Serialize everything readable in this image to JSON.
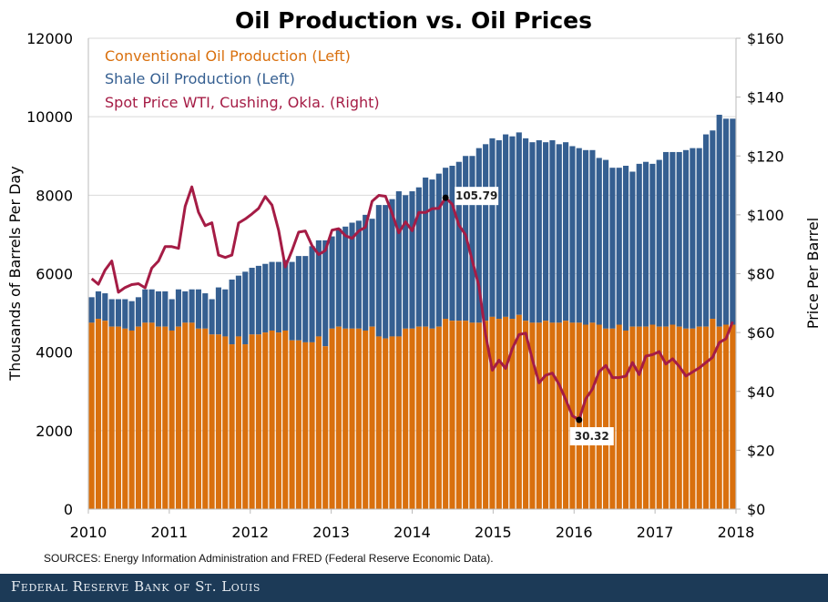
{
  "chart_data": {
    "type": "bar",
    "title": "Oil Production vs. Oil Prices",
    "ylabel": "Thousands of Barrels Per Day",
    "y2label": "Price Per Barrel",
    "ylim": [
      0,
      12000
    ],
    "y2lim": [
      0,
      160
    ],
    "yticks": [
      "0",
      "2000",
      "4000",
      "6000",
      "8000",
      "10000",
      "12000"
    ],
    "y2ticks": [
      "$0",
      "$20",
      "$40",
      "$60",
      "$80",
      "$100",
      "$120",
      "$140",
      "$160"
    ],
    "xticks": [
      "2010",
      "2011",
      "2012",
      "2013",
      "2014",
      "2015",
      "2016",
      "2017",
      "2018"
    ],
    "x_range": [
      "2010-01",
      "2018-01"
    ],
    "grid": true,
    "legend_position": "top-left",
    "series": [
      {
        "name": "Conventional  Oil Production (Left)",
        "color": "#d9700e",
        "axis": "left",
        "stacked": true,
        "values": [
          4750,
          4850,
          4800,
          4650,
          4650,
          4600,
          4550,
          4650,
          4750,
          4750,
          4650,
          4650,
          4550,
          4650,
          4750,
          4750,
          4600,
          4600,
          4450,
          4450,
          4400,
          4200,
          4400,
          4200,
          4450,
          4450,
          4500,
          4550,
          4500,
          4550,
          4300,
          4300,
          4250,
          4250,
          4400,
          4150,
          4600,
          4650,
          4600,
          4600,
          4600,
          4550,
          4650,
          4400,
          4350,
          4400,
          4400,
          4600,
          4600,
          4650,
          4650,
          4600,
          4650,
          4850,
          4800,
          4800,
          4800,
          4750,
          4750,
          4800,
          4900,
          4850,
          4900,
          4850,
          4950,
          4800,
          4750,
          4750,
          4800,
          4750,
          4750,
          4800,
          4750,
          4750,
          4700,
          4750,
          4700,
          4600,
          4600,
          4700,
          4550,
          4650,
          4650,
          4650,
          4700,
          4650,
          4650,
          4700,
          4650,
          4600,
          4600,
          4650,
          4650,
          4850,
          4650,
          4700,
          4700
        ]
      },
      {
        "name": "Shale Oil Production (Left)",
        "color": "#355f91",
        "axis": "left",
        "stacked": true,
        "totals": [
          5400,
          5550,
          5500,
          5350,
          5350,
          5350,
          5300,
          5400,
          5600,
          5600,
          5550,
          5550,
          5350,
          5600,
          5550,
          5600,
          5600,
          5500,
          5350,
          5650,
          5600,
          5850,
          5950,
          6050,
          6150,
          6200,
          6250,
          6300,
          6300,
          6350,
          6300,
          6450,
          6450,
          6700,
          6850,
          6850,
          6950,
          7150,
          7200,
          7300,
          7350,
          7500,
          7400,
          7750,
          7750,
          7900,
          8100,
          8000,
          8100,
          8200,
          8450,
          8400,
          8550,
          8700,
          8750,
          8850,
          9000,
          9000,
          9200,
          9300,
          9450,
          9400,
          9550,
          9500,
          9600,
          9450,
          9350,
          9400,
          9350,
          9400,
          9300,
          9350,
          9250,
          9200,
          9150,
          9150,
          8950,
          8900,
          8700,
          8700,
          8750,
          8600,
          8800,
          8850,
          8800,
          8900,
          9100,
          9100,
          9100,
          9150,
          9200,
          9200,
          9550,
          9650,
          10050,
          9950,
          9950
        ]
      },
      {
        "name": "Spot Price WTI, Cushing, Okla. (Right)",
        "color": "#a51c45",
        "axis": "right",
        "type": "line",
        "values": [
          78.3,
          76.4,
          81.2,
          84.3,
          73.7,
          75.3,
          76.3,
          76.6,
          75.2,
          81.9,
          84.3,
          89.2,
          89.2,
          88.6,
          102.9,
          109.5,
          100.9,
          96.3,
          97.3,
          86.3,
          85.5,
          86.3,
          97.2,
          98.6,
          100.3,
          102.2,
          106.2,
          103.3,
          94.7,
          82.3,
          87.9,
          94.1,
          94.5,
          89.5,
          86.5,
          87.9,
          94.8,
          95.3,
          92.9,
          92.0,
          94.5,
          95.8,
          104.6,
          106.6,
          106.3,
          100.5,
          93.9,
          97.6,
          94.6,
          100.8,
          100.8,
          102.1,
          102.2,
          105.79,
          103.6,
          96.5,
          93.2,
          84.4,
          75.8,
          59.3,
          47.2,
          50.6,
          47.8,
          54.5,
          59.3,
          59.8,
          50.9,
          42.9,
          45.5,
          46.2,
          42.4,
          37.2,
          31.7,
          30.32,
          37.5,
          40.8,
          46.7,
          48.8,
          44.7,
          44.7,
          45.2,
          49.8,
          45.7,
          52.0,
          52.5,
          53.5,
          49.3,
          51.1,
          48.5,
          45.2,
          46.6,
          48.0,
          49.8,
          51.6,
          56.6,
          57.9,
          63.7
        ]
      }
    ],
    "annotations": [
      {
        "label": "105.79",
        "month_index": 53
      },
      {
        "label": "30.32",
        "month_index": 73
      }
    ]
  },
  "source": "SOURCES: Energy Information Administration and FRED (Federal Reserve Economic Data).",
  "footer": "Federal Reserve Bank of St. Louis"
}
